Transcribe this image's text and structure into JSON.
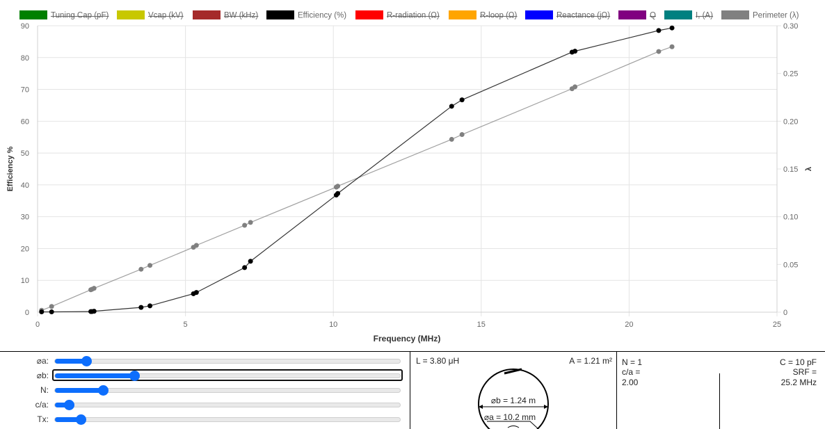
{
  "legend": [
    {
      "label": "Tuning Cap (pF)",
      "color": "#008000",
      "hidden": true
    },
    {
      "label": "Vcap (kV)",
      "color": "#c8c800",
      "hidden": true
    },
    {
      "label": "BW (kHz)",
      "color": "#a52a2a",
      "hidden": true
    },
    {
      "label": "Efficiency (%)",
      "color": "#000000",
      "hidden": false
    },
    {
      "label": "R-radiation (Ω)",
      "color": "#ff0000",
      "hidden": true
    },
    {
      "label": "R-loop (Ω)",
      "color": "#ffa500",
      "hidden": true
    },
    {
      "label": "Reactance (jΩ)",
      "color": "#0000ff",
      "hidden": true
    },
    {
      "label": "Q",
      "color": "#800080",
      "hidden": true
    },
    {
      "label": "I, (A)",
      "color": "#008080",
      "hidden": true
    },
    {
      "label": "Perimeter (λ)",
      "color": "#808080",
      "hidden": false
    }
  ],
  "chart_data": {
    "type": "line",
    "xlabel": "Frequency (MHz)",
    "ylabel": "Efficiency %",
    "y2label": "λ",
    "xlim": [
      0,
      25
    ],
    "ylim": [
      0,
      90
    ],
    "y2lim": [
      0,
      0.3
    ],
    "x_ticks": [
      "0",
      "5",
      "10",
      "15",
      "20",
      "25"
    ],
    "y_ticks": [
      "0",
      "10",
      "20",
      "30",
      "40",
      "50",
      "60",
      "70",
      "80",
      "90"
    ],
    "y2_ticks": [
      "0",
      "0.05",
      "0.10",
      "0.15",
      "0.20",
      "0.25",
      "0.30"
    ],
    "grid": true,
    "legend_position": "top",
    "series": [
      {
        "name": "Efficiency (%)",
        "axis": "left",
        "color": "#000000",
        "x": [
          0.136,
          0.475,
          1.8,
          1.84,
          1.91,
          3.5,
          3.8,
          5.27,
          5.37,
          7.0,
          7.2,
          10.1,
          10.15,
          14.0,
          14.35,
          18.07,
          18.17,
          21.0,
          21.45
        ],
        "y": [
          0.1,
          0.1,
          0.2,
          0.2,
          0.3,
          1.5,
          2.0,
          5.8,
          6.2,
          14.0,
          16.0,
          36.8,
          37.3,
          64.7,
          66.7,
          81.7,
          82.0,
          88.5,
          89.3
        ]
      },
      {
        "name": "Perimeter (λ)",
        "axis": "right",
        "color": "#808080",
        "x": [
          0.136,
          0.475,
          1.8,
          1.84,
          1.91,
          3.5,
          3.8,
          5.27,
          5.37,
          7.0,
          7.2,
          10.1,
          10.15,
          14.0,
          14.35,
          18.07,
          18.17,
          21.0,
          21.45
        ],
        "y": [
          0.002,
          0.006,
          0.0235,
          0.024,
          0.025,
          0.045,
          0.049,
          0.068,
          0.07,
          0.091,
          0.094,
          0.131,
          0.132,
          0.181,
          0.186,
          0.234,
          0.236,
          0.273,
          0.278
        ]
      }
    ]
  },
  "sliders": [
    {
      "label": "⌀a:",
      "value": 0.09
    },
    {
      "label": "⌀b:",
      "value": 0.23
    },
    {
      "label": "N:",
      "value": 0.14
    },
    {
      "label": "c/a:",
      "value": 0.04
    },
    {
      "label": "Tx:",
      "value": 0.075
    }
  ],
  "info": {
    "inductance": "L = 3.80 μH",
    "area": "A = 1.21 m²",
    "loop_diameter": "⌀b = 1.24 m",
    "wire_diameter": "⌀a = 10.2 mm",
    "turns": "N = 1",
    "ca_label": "c/a =",
    "ca_value": "2.00",
    "capacitance": "C = 10 pF",
    "srf_label": "SRF =",
    "srf_value": "25.2 MHz"
  }
}
